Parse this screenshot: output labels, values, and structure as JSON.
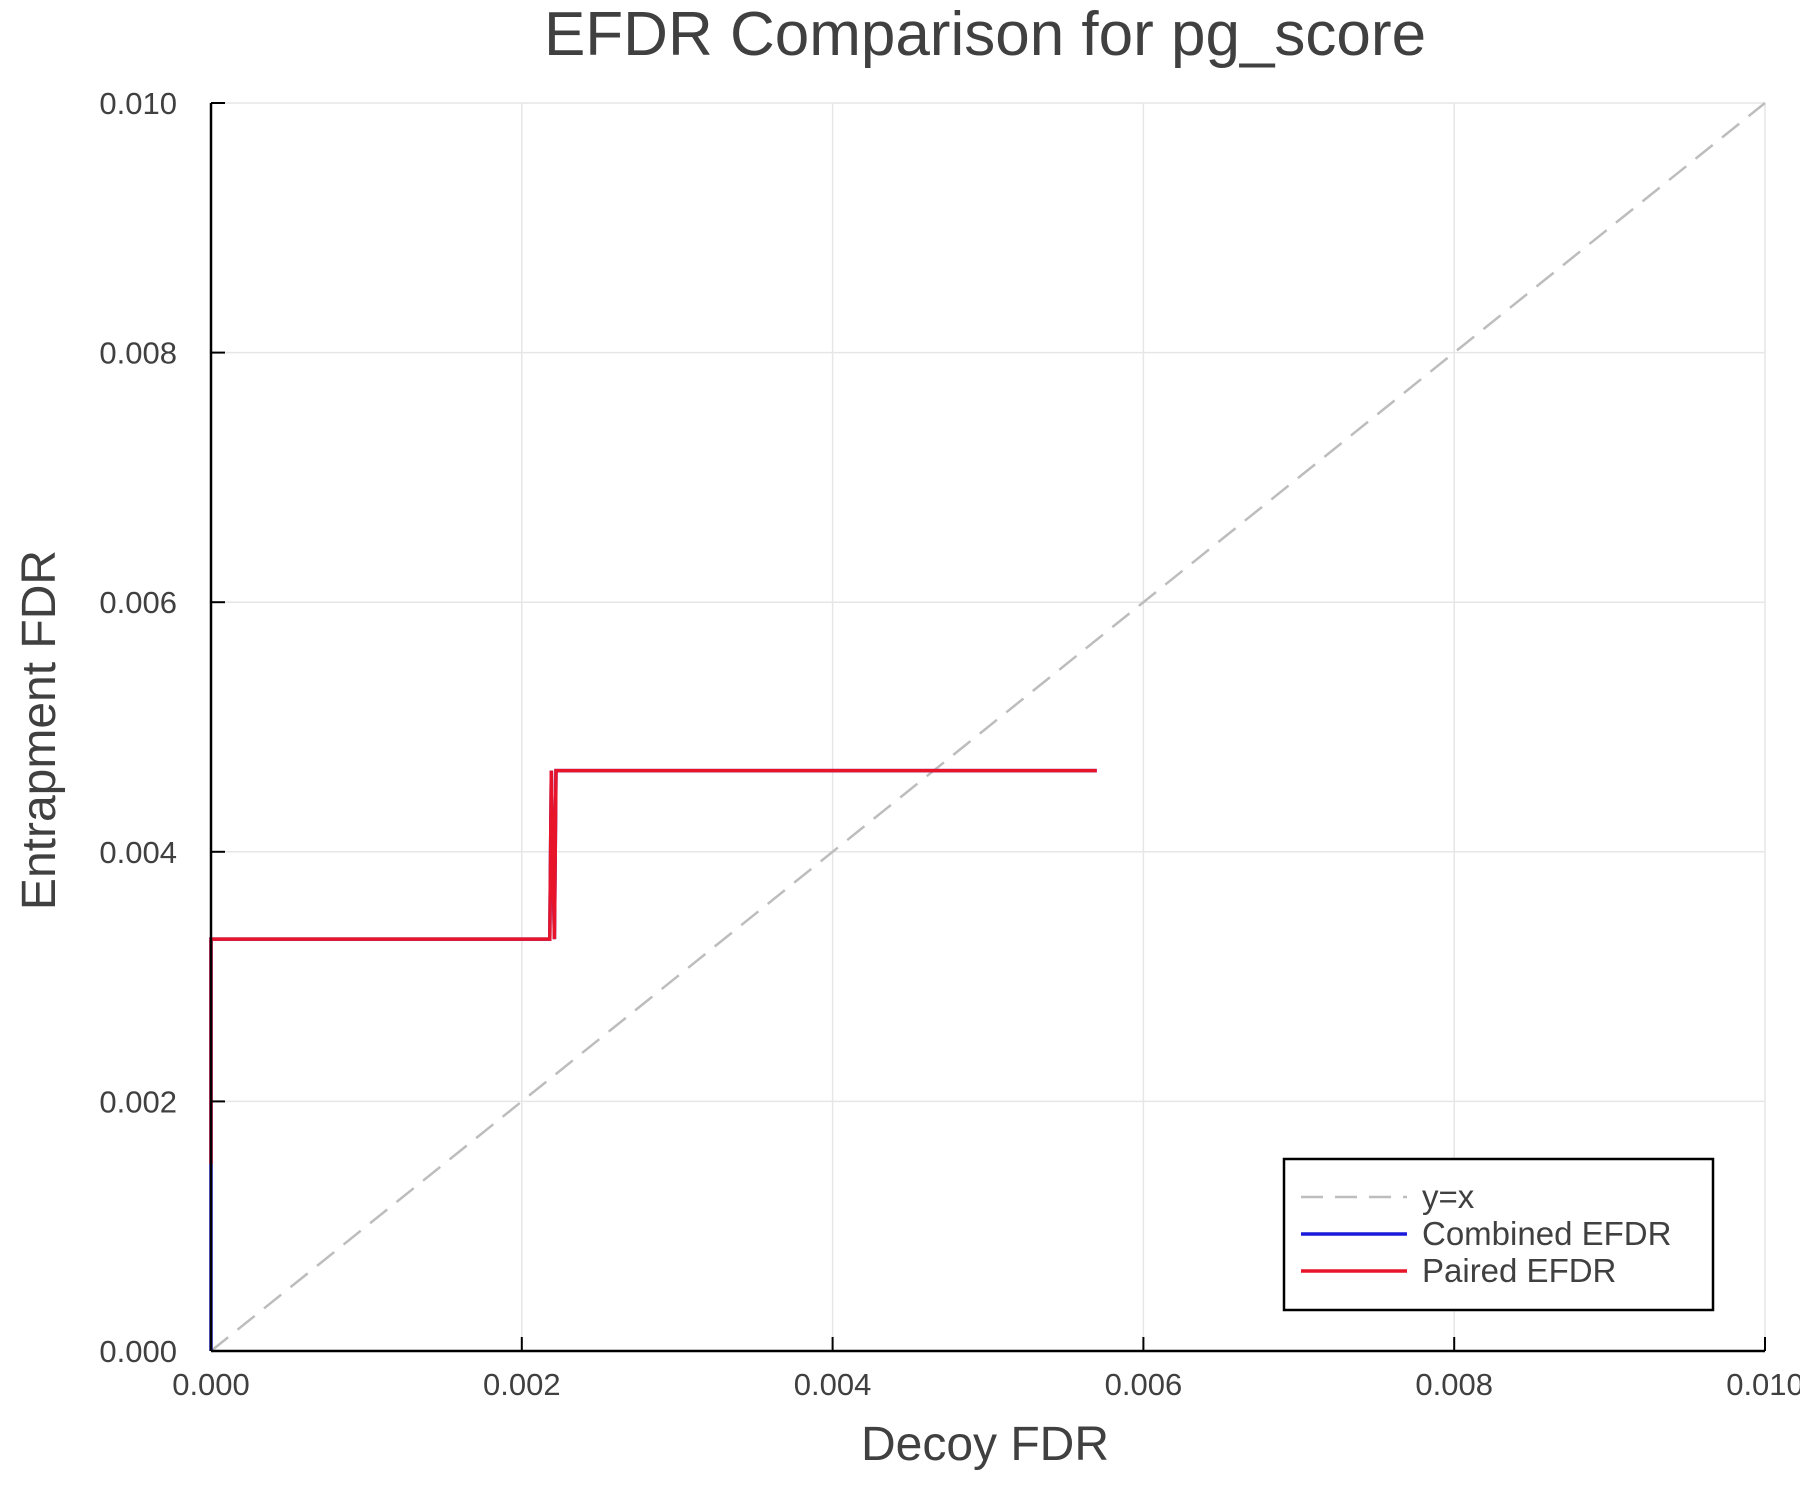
{
  "chart_data": {
    "type": "line",
    "title": "EFDR Comparison for pg_score",
    "xlabel": "Decoy FDR",
    "ylabel": "Entrapment FDR",
    "xlim": [
      0,
      0.01
    ],
    "ylim": [
      0,
      0.01
    ],
    "xticks": [
      0,
      0.002,
      0.004,
      0.006,
      0.008,
      0.01
    ],
    "yticks": [
      0,
      0.002,
      0.004,
      0.006,
      0.008,
      0.01
    ],
    "xtick_labels": [
      "0.000",
      "0.002",
      "0.004",
      "0.006",
      "0.008",
      "0.010"
    ],
    "ytick_labels": [
      "0.000",
      "0.002",
      "0.004",
      "0.006",
      "0.008",
      "0.010"
    ],
    "grid": true,
    "legend_position": "bottom-right",
    "series": [
      {
        "name": "y=x",
        "color": "#bdbdbd",
        "dashed": true,
        "x": [
          0,
          0.01
        ],
        "y": [
          0,
          0.01
        ]
      },
      {
        "name": "Combined EFDR",
        "color": "#1a1adb",
        "dashed": false,
        "x": [
          0,
          0,
          0,
          0.00218,
          0.00219,
          0.00221,
          0.00222,
          0.0057
        ],
        "y": [
          0,
          0.00155,
          0.0033,
          0.0033,
          0.00465,
          0.0033,
          0.00465,
          0.00465
        ]
      },
      {
        "name": "Paired EFDR",
        "color": "#e8152a",
        "dashed": false,
        "x": [
          0,
          0,
          0.00218,
          0.00219,
          0.00221,
          0.00222,
          0.0057
        ],
        "y": [
          0.0015,
          0.0033,
          0.0033,
          0.00465,
          0.0033,
          0.00465,
          0.00465
        ]
      }
    ]
  }
}
